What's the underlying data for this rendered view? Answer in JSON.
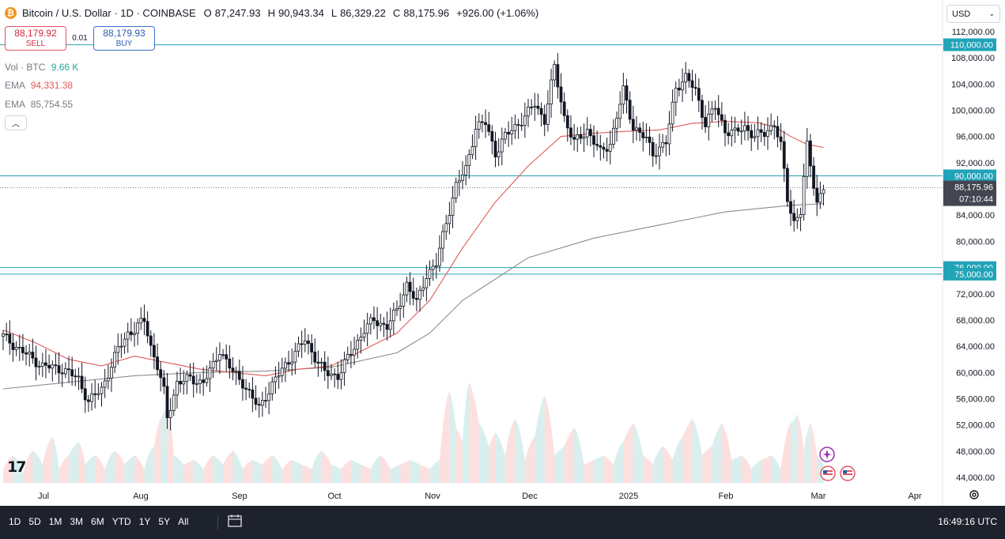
{
  "header": {
    "symbol": "Bitcoin / U.S. Dollar · 1D · COINBASE",
    "open_label": "O",
    "open": "87,247.93",
    "high_label": "H",
    "high": "90,943.34",
    "low_label": "L",
    "low": "86,329.22",
    "close_label": "C",
    "close": "88,175.96",
    "change": "+926.00 (+1.06%)"
  },
  "trade": {
    "sell_price": "88,179.92",
    "sell_label": "SELL",
    "spread": "0.01",
    "buy_price": "88,179.93",
    "buy_label": "BUY"
  },
  "indicators": {
    "vol_label": "Vol · BTC",
    "vol_value": "9.66 K",
    "ema1_label": "EMA",
    "ema1_value": "94,331.38",
    "ema2_label": "EMA",
    "ema2_value": "85,754.55"
  },
  "currency": "USD",
  "colors": {
    "up": "#ffffff",
    "down": "#131722",
    "ema_fast": "#e05a5a",
    "ema_slow": "#8c8c8c",
    "hline": "#22a3b8",
    "price_tag": "#434651"
  },
  "chart_data": {
    "type": "candlestick",
    "x_ticks": [
      "Jul",
      "Aug",
      "Sep",
      "Oct",
      "Nov",
      "Dec",
      "2025",
      "Feb",
      "Mar",
      "Apr"
    ],
    "y_ticks": [
      44000,
      48000,
      52000,
      56000,
      60000,
      64000,
      68000,
      72000,
      76000,
      80000,
      84000,
      88000,
      92000,
      96000,
      100000,
      104000,
      108000,
      112000
    ],
    "y_tick_labels": [
      "44,000.00",
      "48,000.00",
      "52,000.00",
      "56,000.00",
      "60,000.00",
      "64,000.00",
      "68,000.00",
      "72,000.00",
      "76,000.00",
      "80,000.00",
      "84,000.00",
      "88,000.00",
      "92,000.00",
      "96,000.00",
      "100,000.00",
      "104,000.00",
      "108,000.00",
      "112,000.00"
    ],
    "ylim": [
      42500,
      114000
    ],
    "horizontal_lines": [
      {
        "value": 110000,
        "label": "110,000.00"
      },
      {
        "value": 90000,
        "label": "90,000.00"
      },
      {
        "value": 76000,
        "label": "76,000.00"
      },
      {
        "value": 75000,
        "label": "75,000.00"
      }
    ],
    "last_price": {
      "value": 88175.96,
      "label": "88,175.96",
      "countdown": "07:10:44"
    },
    "close_path": [
      [
        0,
        65500
      ],
      [
        5,
        63500
      ],
      [
        12,
        61000
      ],
      [
        18,
        60500
      ],
      [
        23,
        59000
      ],
      [
        26,
        55500
      ],
      [
        30,
        57500
      ],
      [
        35,
        63500
      ],
      [
        38,
        66000
      ],
      [
        40,
        66500
      ],
      [
        43,
        68000
      ],
      [
        45,
        64000
      ],
      [
        47,
        61000
      ],
      [
        49,
        57000
      ],
      [
        50,
        53000
      ],
      [
        53,
        58500
      ],
      [
        57,
        59000
      ],
      [
        61,
        58500
      ],
      [
        64,
        61000
      ],
      [
        66,
        63500
      ],
      [
        70,
        60000
      ],
      [
        73,
        58500
      ],
      [
        76,
        56000
      ],
      [
        78,
        54500
      ],
      [
        80,
        56500
      ],
      [
        85,
        60500
      ],
      [
        89,
        63000
      ],
      [
        92,
        65000
      ],
      [
        96,
        61500
      ],
      [
        98,
        60000
      ],
      [
        102,
        59500
      ],
      [
        106,
        63000
      ],
      [
        110,
        66500
      ],
      [
        113,
        68000
      ],
      [
        117,
        67000
      ],
      [
        120,
        69500
      ],
      [
        123,
        73500
      ],
      [
        126,
        70500
      ],
      [
        129,
        75000
      ],
      [
        132,
        76500
      ],
      [
        135,
        83000
      ],
      [
        138,
        88500
      ],
      [
        141,
        91000
      ],
      [
        144,
        97500
      ],
      [
        147,
        98000
      ],
      [
        150,
        93500
      ],
      [
        153,
        96000
      ],
      [
        156,
        97500
      ],
      [
        159,
        99000
      ],
      [
        162,
        101000
      ],
      [
        165,
        98500
      ],
      [
        168,
        106500
      ],
      [
        171,
        99000
      ],
      [
        174,
        95000
      ],
      [
        178,
        97000
      ],
      [
        182,
        93500
      ],
      [
        185,
        95000
      ],
      [
        189,
        103000
      ],
      [
        192,
        97500
      ],
      [
        196,
        95500
      ],
      [
        198,
        93500
      ],
      [
        202,
        95000
      ],
      [
        205,
        103500
      ],
      [
        208,
        105000
      ],
      [
        211,
        103000
      ],
      [
        214,
        98000
      ],
      [
        217,
        100500
      ],
      [
        220,
        97000
      ],
      [
        223,
        96500
      ],
      [
        226,
        97500
      ],
      [
        229,
        96000
      ],
      [
        232,
        96500
      ],
      [
        235,
        98000
      ],
      [
        237,
        94500
      ],
      [
        239,
        86500
      ],
      [
        241,
        83000
      ],
      [
        243,
        84500
      ],
      [
        245,
        94500
      ],
      [
        248,
        86000
      ],
      [
        250,
        88176
      ]
    ],
    "ema_fast": [
      [
        0,
        66500
      ],
      [
        10,
        64500
      ],
      [
        20,
        62000
      ],
      [
        30,
        61000
      ],
      [
        40,
        62500
      ],
      [
        50,
        61500
      ],
      [
        60,
        60500
      ],
      [
        70,
        60000
      ],
      [
        80,
        59500
      ],
      [
        90,
        60500
      ],
      [
        100,
        61000
      ],
      [
        110,
        63500
      ],
      [
        120,
        66000
      ],
      [
        130,
        71000
      ],
      [
        140,
        79000
      ],
      [
        150,
        86000
      ],
      [
        160,
        91500
      ],
      [
        170,
        96000
      ],
      [
        180,
        96500
      ],
      [
        190,
        96800
      ],
      [
        200,
        97000
      ],
      [
        210,
        98000
      ],
      [
        220,
        98300
      ],
      [
        230,
        98100
      ],
      [
        235,
        97500
      ],
      [
        240,
        96000
      ],
      [
        245,
        94800
      ],
      [
        250,
        94331
      ]
    ],
    "ema_slow": [
      [
        0,
        57500
      ],
      [
        20,
        58500
      ],
      [
        40,
        59500
      ],
      [
        60,
        60000
      ],
      [
        80,
        60200
      ],
      [
        100,
        60800
      ],
      [
        120,
        63000
      ],
      [
        130,
        66000
      ],
      [
        140,
        71000
      ],
      [
        160,
        77500
      ],
      [
        180,
        80500
      ],
      [
        200,
        82500
      ],
      [
        220,
        84500
      ],
      [
        240,
        85500
      ],
      [
        250,
        85755
      ]
    ],
    "volume_profile": [
      [
        0,
        3
      ],
      [
        3,
        6
      ],
      [
        6,
        2
      ],
      [
        9,
        7
      ],
      [
        12,
        4
      ],
      [
        15,
        10
      ],
      [
        17,
        3
      ],
      [
        20,
        6
      ],
      [
        23,
        9
      ],
      [
        25,
        4
      ],
      [
        28,
        6
      ],
      [
        31,
        3
      ],
      [
        34,
        7
      ],
      [
        37,
        4
      ],
      [
        40,
        6
      ],
      [
        43,
        3
      ],
      [
        46,
        8
      ],
      [
        48,
        14
      ],
      [
        50,
        17
      ],
      [
        52,
        6
      ],
      [
        55,
        4
      ],
      [
        58,
        5
      ],
      [
        61,
        3
      ],
      [
        64,
        6
      ],
      [
        67,
        4
      ],
      [
        70,
        7
      ],
      [
        73,
        3
      ],
      [
        76,
        5
      ],
      [
        79,
        4
      ],
      [
        82,
        6
      ],
      [
        85,
        3
      ],
      [
        88,
        5
      ],
      [
        91,
        4
      ],
      [
        94,
        3
      ],
      [
        97,
        7
      ],
      [
        100,
        4
      ],
      [
        103,
        3
      ],
      [
        106,
        5
      ],
      [
        109,
        4
      ],
      [
        112,
        3
      ],
      [
        115,
        6
      ],
      [
        118,
        3
      ],
      [
        121,
        4
      ],
      [
        124,
        5
      ],
      [
        127,
        4
      ],
      [
        130,
        3
      ],
      [
        133,
        5
      ],
      [
        136,
        20
      ],
      [
        138,
        12
      ],
      [
        140,
        9
      ],
      [
        142,
        22
      ],
      [
        145,
        13
      ],
      [
        148,
        8
      ],
      [
        150,
        11
      ],
      [
        153,
        6
      ],
      [
        156,
        14
      ],
      [
        159,
        5
      ],
      [
        162,
        10
      ],
      [
        165,
        19
      ],
      [
        168,
        6
      ],
      [
        171,
        8
      ],
      [
        174,
        12
      ],
      [
        177,
        4
      ],
      [
        180,
        5
      ],
      [
        183,
        6
      ],
      [
        186,
        4
      ],
      [
        189,
        9
      ],
      [
        192,
        13
      ],
      [
        195,
        6
      ],
      [
        198,
        4
      ],
      [
        201,
        8
      ],
      [
        204,
        5
      ],
      [
        207,
        10
      ],
      [
        210,
        14
      ],
      [
        213,
        6
      ],
      [
        216,
        8
      ],
      [
        219,
        13
      ],
      [
        222,
        5
      ],
      [
        225,
        6
      ],
      [
        228,
        3
      ],
      [
        231,
        5
      ],
      [
        234,
        6
      ],
      [
        237,
        3
      ],
      [
        240,
        13
      ],
      [
        242,
        15
      ],
      [
        244,
        7
      ],
      [
        246,
        13
      ],
      [
        248,
        6
      ],
      [
        250,
        4
      ]
    ]
  },
  "bottom_bar": {
    "ranges": [
      "1D",
      "5D",
      "1M",
      "3M",
      "6M",
      "YTD",
      "1Y",
      "5Y",
      "All"
    ],
    "clock": "16:49:16 UTC"
  }
}
